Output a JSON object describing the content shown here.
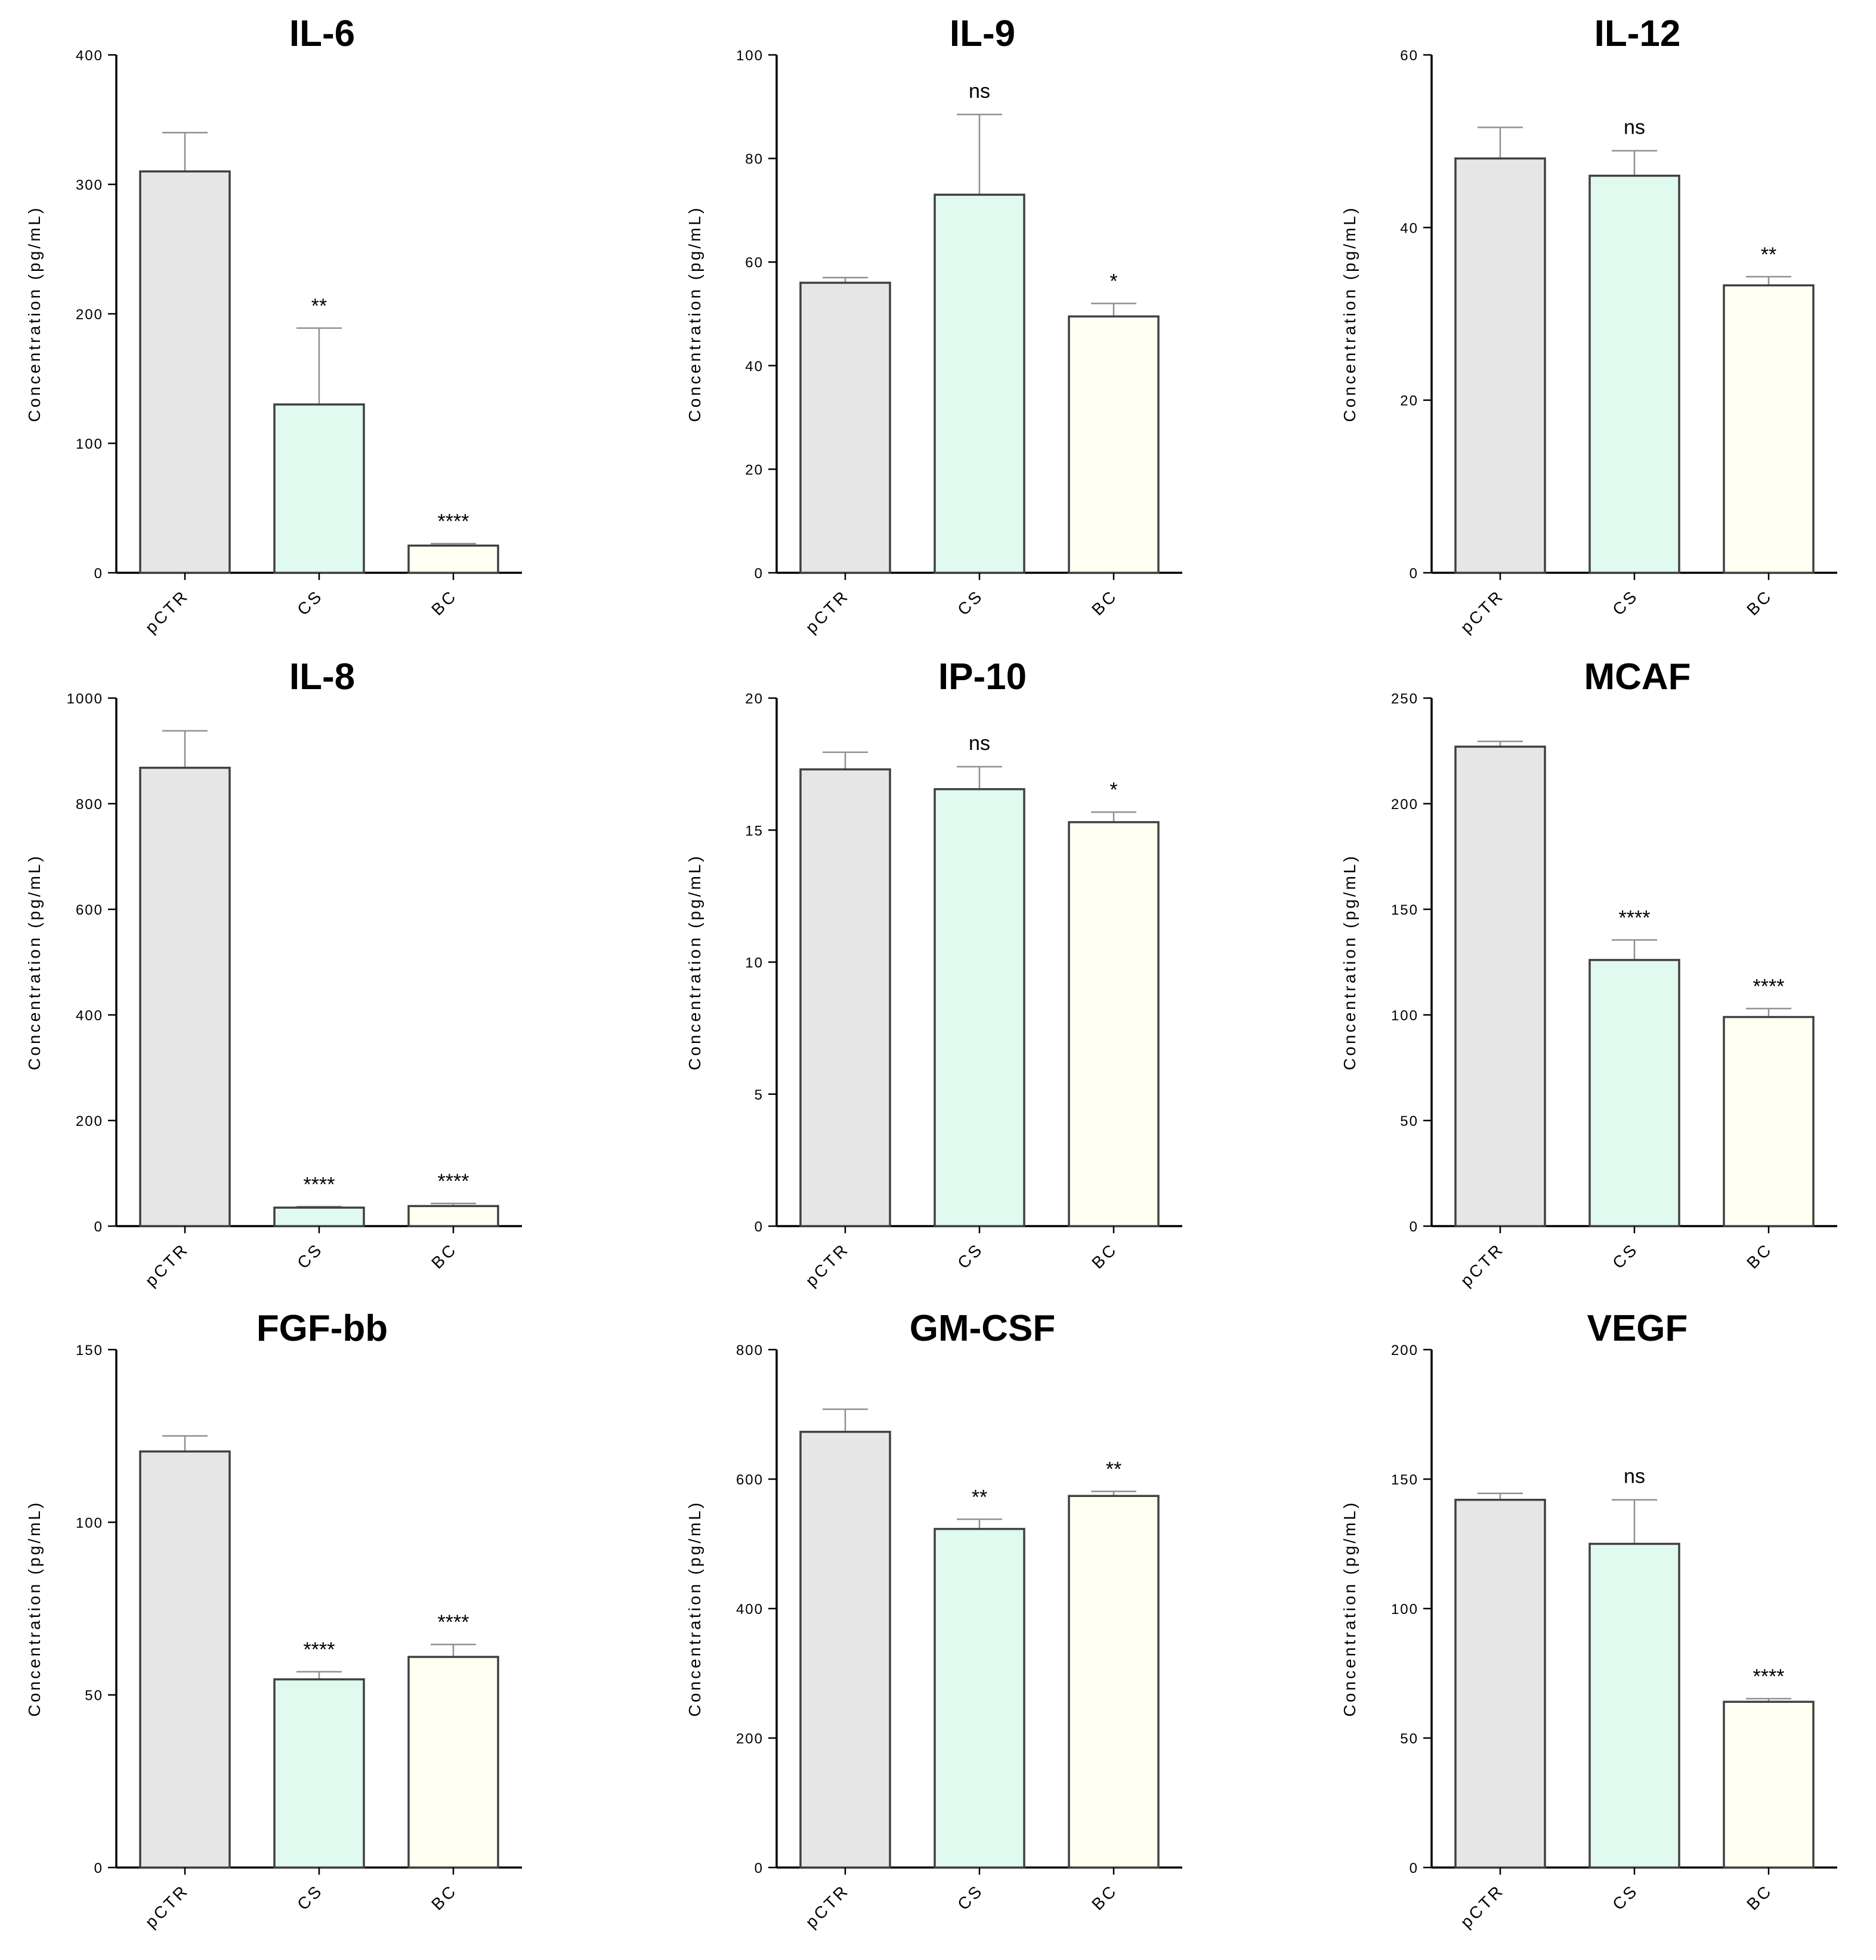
{
  "chart_data": [
    {
      "type": "bar",
      "title": "IL-6",
      "ylabel": "Concentration (pg/mL)",
      "ylim": [
        0,
        400
      ],
      "yticks": [
        0,
        100,
        200,
        300,
        400
      ],
      "categories": [
        "pCTR",
        "CS",
        "BC"
      ],
      "values": [
        310,
        130,
        21
      ],
      "errors": [
        30,
        59,
        1.5
      ],
      "significance": [
        "",
        "**",
        "****"
      ],
      "colors": [
        "#e6e6e6",
        "#e0faf0",
        "#fffff2"
      ]
    },
    {
      "type": "bar",
      "title": "IL-9",
      "ylabel": "Concentration (pg/mL)",
      "ylim": [
        0,
        100
      ],
      "yticks": [
        0,
        20,
        40,
        60,
        80,
        100
      ],
      "categories": [
        "pCTR",
        "CS",
        "BC"
      ],
      "values": [
        56,
        73,
        49.5
      ],
      "errors": [
        1,
        15.5,
        2.5
      ],
      "significance": [
        "",
        "ns",
        "*"
      ],
      "colors": [
        "#e6e6e6",
        "#e0faf0",
        "#fffff2"
      ]
    },
    {
      "type": "bar",
      "title": "IL-12",
      "ylabel": "Concentration (pg/mL)",
      "ylim": [
        0,
        60
      ],
      "yticks": [
        0,
        20,
        40,
        60
      ],
      "categories": [
        "pCTR",
        "CS",
        "BC"
      ],
      "values": [
        48,
        46,
        33.3
      ],
      "errors": [
        3.6,
        2.9,
        1
      ],
      "significance": [
        "",
        "ns",
        "**"
      ],
      "colors": [
        "#e6e6e6",
        "#e0faf0",
        "#fffff2"
      ]
    },
    {
      "type": "bar",
      "title": "IL-8",
      "ylabel": "Concentration (pg/mL)",
      "ylim": [
        0,
        1000
      ],
      "yticks": [
        0,
        200,
        400,
        600,
        800,
        1000
      ],
      "categories": [
        "pCTR",
        "CS",
        "BC"
      ],
      "values": [
        868,
        35,
        38
      ],
      "errors": [
        70,
        2,
        5
      ],
      "significance": [
        "",
        "****",
        "****"
      ],
      "colors": [
        "#e6e6e6",
        "#e0faf0",
        "#fffff2"
      ]
    },
    {
      "type": "bar",
      "title": "IP-10",
      "ylabel": "Concentration (pg/mL)",
      "ylim": [
        0,
        20
      ],
      "yticks": [
        0,
        5,
        10,
        15,
        20
      ],
      "categories": [
        "pCTR",
        "CS",
        "BC"
      ],
      "values": [
        17.3,
        16.55,
        15.3
      ],
      "errors": [
        0.65,
        0.85,
        0.38
      ],
      "significance": [
        "",
        "ns",
        "*"
      ],
      "colors": [
        "#e6e6e6",
        "#e0faf0",
        "#fffff2"
      ]
    },
    {
      "type": "bar",
      "title": "MCAF",
      "ylabel": "Concentration (pg/mL)",
      "ylim": [
        0,
        250
      ],
      "yticks": [
        0,
        50,
        100,
        150,
        200,
        250
      ],
      "categories": [
        "pCTR",
        "CS",
        "BC"
      ],
      "values": [
        227,
        126,
        99
      ],
      "errors": [
        2.5,
        9.5,
        4
      ],
      "significance": [
        "",
        "****",
        "****"
      ],
      "colors": [
        "#e6e6e6",
        "#e0faf0",
        "#fffff2"
      ]
    },
    {
      "type": "bar",
      "title": "FGF-bb",
      "ylabel": "Concentration (pg/mL)",
      "ylim": [
        0,
        150
      ],
      "yticks": [
        0,
        50,
        100,
        150
      ],
      "categories": [
        "pCTR",
        "CS",
        "BC"
      ],
      "values": [
        120.5,
        54.5,
        61
      ],
      "errors": [
        4.5,
        2.2,
        3.6
      ],
      "significance": [
        "",
        "****",
        "****"
      ],
      "colors": [
        "#e6e6e6",
        "#e0faf0",
        "#fffff2"
      ]
    },
    {
      "type": "bar",
      "title": "GM-CSF",
      "ylabel": "Concentration (pg/mL)",
      "ylim": [
        0,
        800
      ],
      "yticks": [
        0,
        200,
        400,
        600,
        800
      ],
      "categories": [
        "pCTR",
        "CS",
        "BC"
      ],
      "values": [
        673,
        523,
        574
      ],
      "errors": [
        35,
        15,
        7
      ],
      "significance": [
        "",
        "**",
        "**"
      ],
      "colors": [
        "#e6e6e6",
        "#e0faf0",
        "#fffff2"
      ]
    },
    {
      "type": "bar",
      "title": "VEGF",
      "ylabel": "Concentration (pg/mL)",
      "ylim": [
        0,
        200
      ],
      "yticks": [
        0,
        50,
        100,
        150,
        200
      ],
      "categories": [
        "pCTR",
        "CS",
        "BC"
      ],
      "values": [
        142,
        125,
        64
      ],
      "errors": [
        2.5,
        17,
        1.2
      ],
      "significance": [
        "",
        "ns",
        "****"
      ],
      "colors": [
        "#e6e6e6",
        "#e0faf0",
        "#fffff2"
      ]
    }
  ]
}
